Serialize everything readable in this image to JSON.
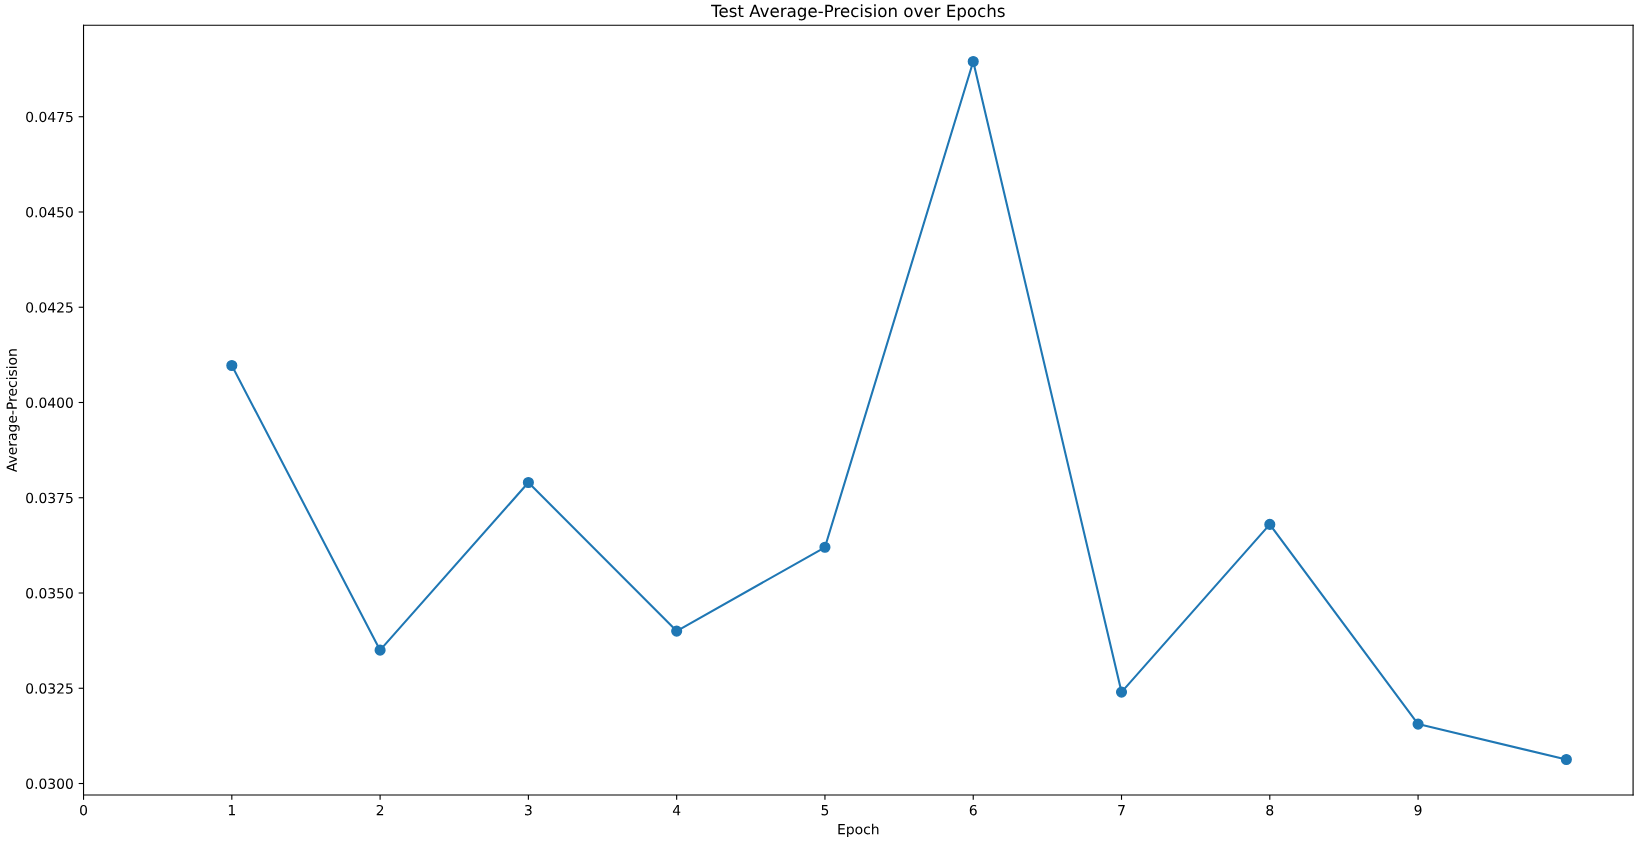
{
  "chart_data": {
    "type": "line",
    "title": "Test Average-Precision over Epochs",
    "xlabel": "Epoch",
    "ylabel": "Average-Precision",
    "x": [
      1,
      2,
      3,
      4,
      5,
      6,
      7,
      8,
      9,
      10
    ],
    "series": [
      {
        "color": "#1f77b4",
        "values": [
          0.04097,
          0.0335,
          0.0379,
          0.034,
          0.0362,
          0.04895,
          0.0324,
          0.0368,
          0.03156,
          0.03063
        ]
      }
    ],
    "xlim": [
      0,
      10.45
    ],
    "xticks": [
      0,
      1,
      2,
      3,
      4,
      5,
      6,
      7,
      8,
      9
    ],
    "ylim": [
      0.0297,
      0.0499
    ],
    "yticks": [
      {
        "value": 0.03,
        "label": "0.0300"
      },
      {
        "value": 0.0325,
        "label": "0.0325"
      },
      {
        "value": 0.035,
        "label": "0.0350"
      },
      {
        "value": 0.0375,
        "label": "0.0375"
      },
      {
        "value": 0.04,
        "label": "0.0400"
      },
      {
        "value": 0.0425,
        "label": "0.0425"
      },
      {
        "value": 0.045,
        "label": "0.0450"
      },
      {
        "value": 0.0475,
        "label": "0.0475"
      }
    ],
    "grid": false,
    "legend": false,
    "marker": "circle",
    "line_style": "solid"
  }
}
